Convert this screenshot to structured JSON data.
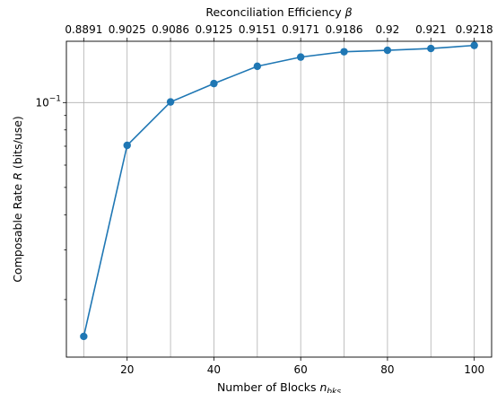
{
  "chart_data": {
    "type": "line",
    "xlabel_main": "Number of Blocks ",
    "xlabel_sub": "bks",
    "xlabel_var": "n",
    "top_xlabel_main": "Reconciliation Efficiency ",
    "top_xlabel_var": "β",
    "ylabel_prefix": "Composable Rate ",
    "ylabel_var": "R",
    "ylabel_suffix": " (bits/use)",
    "y_scale": "log",
    "xlim": [
      6,
      104
    ],
    "ylim": [
      0.0125,
      0.165
    ],
    "x": [
      10,
      20,
      30,
      40,
      50,
      60,
      70,
      80,
      90,
      100
    ],
    "values": [
      0.0148,
      0.0705,
      0.1005,
      0.1168,
      0.1345,
      0.145,
      0.1515,
      0.1533,
      0.1555,
      0.1595
    ],
    "x_ticks": [
      20,
      40,
      60,
      80,
      100
    ],
    "x_tick_labels": [
      "20",
      "40",
      "60",
      "80",
      "100"
    ],
    "top_ticks": [
      10,
      20,
      30,
      40,
      50,
      60,
      70,
      80,
      90,
      100
    ],
    "top_tick_labels": [
      "0.8891",
      "0.9025",
      "0.9086",
      "0.9125",
      "0.9151",
      "0.9171",
      "0.9186",
      "0.92",
      "0.921",
      "0.9218"
    ],
    "y_major_ticks": [
      0.1
    ],
    "y_major_base": "10",
    "y_major_exp": "−1",
    "y_minor_ticks": [
      0.02,
      0.03,
      0.04,
      0.05,
      0.06,
      0.07,
      0.08,
      0.09
    ],
    "grid": true
  }
}
